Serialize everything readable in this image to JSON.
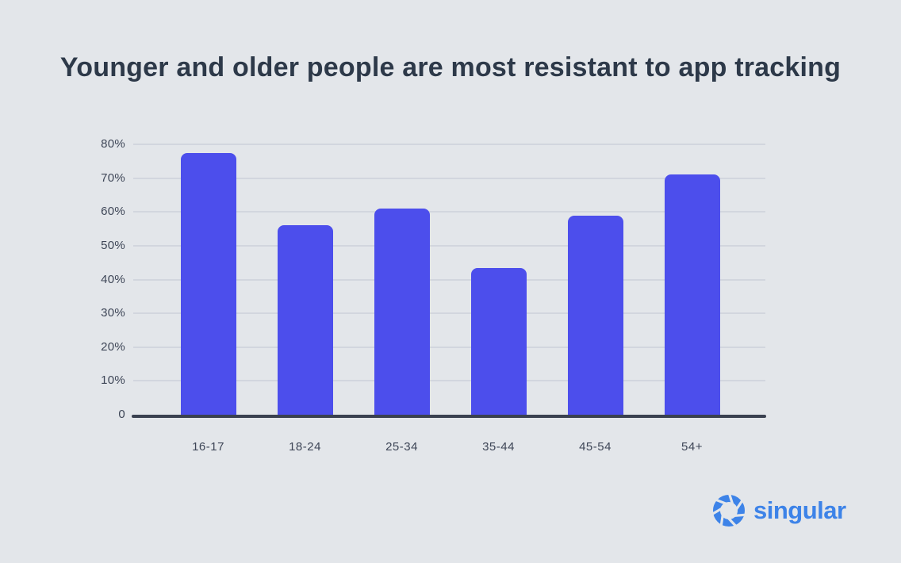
{
  "title": "Younger and older people are most resistant to app tracking",
  "chart_data": {
    "type": "bar",
    "title": "Younger and older people are most resistant to app tracking",
    "categories": [
      "16-17",
      "18-24",
      "25-34",
      "35-44",
      "45-54",
      "54+"
    ],
    "values": [
      77.5,
      56,
      61,
      43.5,
      59,
      71
    ],
    "xlabel": "",
    "ylabel": "",
    "ylim": [
      0,
      80
    ],
    "yticks": [
      0,
      10,
      20,
      30,
      40,
      50,
      60,
      70,
      80
    ],
    "ytick_labels": [
      "0",
      "10%",
      "20%",
      "30%",
      "40%",
      "50%",
      "60%",
      "70%",
      "80%"
    ],
    "grid": true,
    "legend": false,
    "bar_color": "#4c4eec"
  },
  "branding": {
    "logo_text": "singular",
    "logo_icon": "aperture-swirl-icon",
    "logo_color": "#3d83e8"
  },
  "colors": {
    "background": "#e3e6ea",
    "bar": "#4c4eec",
    "gridline": "#d2d6de",
    "axis_line": "#3a4150",
    "title_text": "#2d3949",
    "tick_text": "#3e4657",
    "logo_blue": "#3d83e8"
  }
}
